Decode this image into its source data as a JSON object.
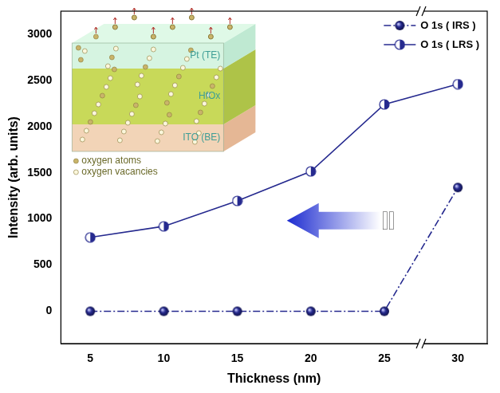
{
  "chart_data": {
    "type": "line",
    "x_label": "Thickness (nm)",
    "y_label": "Intensity (arb. units)",
    "x": [
      5,
      10,
      15,
      20,
      25,
      30
    ],
    "xlim": [
      3,
      32
    ],
    "xticks": [
      5,
      10,
      15,
      20,
      25,
      30
    ],
    "ylim": [
      -350,
      3250
    ],
    "yticks": [
      0,
      500,
      1000,
      1500,
      2000,
      2500,
      3000
    ],
    "grid": false,
    "legend": "upper right",
    "series": [
      {
        "name": "O 1s ( IRS )",
        "color": "#262a8f",
        "marker": "circle",
        "line_style": "dashdot",
        "values": [
          0,
          0,
          0,
          0,
          0,
          1340
        ]
      },
      {
        "name": "O 1s ( LRS )",
        "color": "#262a8f",
        "marker": "half_filled_circle",
        "line_style": "solid",
        "values": [
          800,
          920,
          1195,
          1515,
          2240,
          2460
        ]
      }
    ],
    "annotations": [
      "Pt (TE)",
      "HfOx",
      "ITO (BE)",
      "oxygen atoms",
      "oxygen vacancies"
    ]
  }
}
